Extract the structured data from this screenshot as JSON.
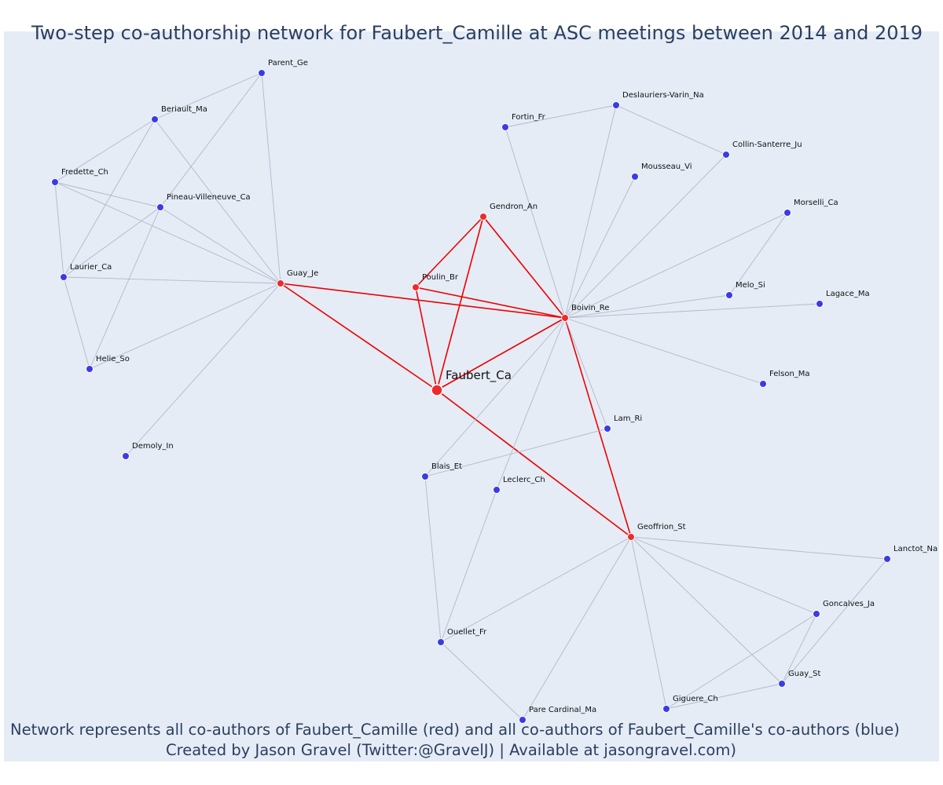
{
  "title": "Two-step co-authorship network for Faubert_Camille at ASC meetings between 2014 and 2019",
  "note_line1": "Network represents all co-authors of Faubert_Camille (red) and all co-authors of Faubert_Camille's co-authors (blue)",
  "note_line2": "Created by Jason Gravel (Twitter:@GravelJ) | Available at jasongravel.com)",
  "colors": {
    "background": "#e5ecf6",
    "red_node": "#ee2a2a",
    "blue_node": "#3b3be6",
    "red_edge": "#ee0000",
    "gray_edge": "#b3b8c8"
  },
  "nodes": [
    {
      "id": "Faubert_Ca",
      "group": "focal"
    },
    {
      "id": "Guay_Je",
      "group": "red"
    },
    {
      "id": "Poulin_Br",
      "group": "red"
    },
    {
      "id": "Gendron_An",
      "group": "red"
    },
    {
      "id": "Boivin_Re",
      "group": "red"
    },
    {
      "id": "Geoffrion_St",
      "group": "red"
    },
    {
      "id": "Parent_Ge",
      "group": "blue"
    },
    {
      "id": "Beriault_Ma",
      "group": "blue"
    },
    {
      "id": "Fredette_Ch",
      "group": "blue"
    },
    {
      "id": "Pineau-Villeneuve_Ca",
      "group": "blue"
    },
    {
      "id": "Laurier_Ca",
      "group": "blue"
    },
    {
      "id": "Helie_So",
      "group": "blue"
    },
    {
      "id": "Demoly_In",
      "group": "blue"
    },
    {
      "id": "Fortin_Fr",
      "group": "blue"
    },
    {
      "id": "Deslauriers-Varin_Na",
      "group": "blue"
    },
    {
      "id": "Collin-Santerre_Ju",
      "group": "blue"
    },
    {
      "id": "Mousseau_Vi",
      "group": "blue"
    },
    {
      "id": "Morselli_Ca",
      "group": "blue"
    },
    {
      "id": "Melo_Si",
      "group": "blue"
    },
    {
      "id": "Lagace_Ma",
      "group": "blue"
    },
    {
      "id": "Felson_Ma",
      "group": "blue"
    },
    {
      "id": "Lam_Ri",
      "group": "blue"
    },
    {
      "id": "Blais_Et",
      "group": "blue"
    },
    {
      "id": "Leclerc_Ch",
      "group": "blue"
    },
    {
      "id": "Lanctot_Na",
      "group": "blue"
    },
    {
      "id": "Goncalves_Ja",
      "group": "blue"
    },
    {
      "id": "Ouellet_Fr",
      "group": "blue"
    },
    {
      "id": "Guay_St",
      "group": "blue"
    },
    {
      "id": "Giguere_Ch",
      "group": "blue"
    },
    {
      "id": "Pare Cardinal_Ma",
      "group": "blue"
    }
  ],
  "edges": [
    [
      "Faubert_Ca",
      "Guay_Je",
      "red"
    ],
    [
      "Faubert_Ca",
      "Poulin_Br",
      "red"
    ],
    [
      "Faubert_Ca",
      "Gendron_An",
      "red"
    ],
    [
      "Faubert_Ca",
      "Boivin_Re",
      "red"
    ],
    [
      "Faubert_Ca",
      "Geoffrion_St",
      "red"
    ],
    [
      "Guay_Je",
      "Boivin_Re",
      "red"
    ],
    [
      "Poulin_Br",
      "Gendron_An",
      "red"
    ],
    [
      "Poulin_Br",
      "Boivin_Re",
      "red"
    ],
    [
      "Gendron_An",
      "Boivin_Re",
      "red"
    ],
    [
      "Boivin_Re",
      "Geoffrion_St",
      "red"
    ],
    [
      "Guay_Je",
      "Parent_Ge",
      "gray"
    ],
    [
      "Guay_Je",
      "Beriault_Ma",
      "gray"
    ],
    [
      "Guay_Je",
      "Fredette_Ch",
      "gray"
    ],
    [
      "Guay_Je",
      "Pineau-Villeneuve_Ca",
      "gray"
    ],
    [
      "Guay_Je",
      "Laurier_Ca",
      "gray"
    ],
    [
      "Guay_Je",
      "Helie_So",
      "gray"
    ],
    [
      "Guay_Je",
      "Demoly_In",
      "gray"
    ],
    [
      "Parent_Ge",
      "Beriault_Ma",
      "gray"
    ],
    [
      "Parent_Ge",
      "Pineau-Villeneuve_Ca",
      "gray"
    ],
    [
      "Beriault_Ma",
      "Fredette_Ch",
      "gray"
    ],
    [
      "Beriault_Ma",
      "Laurier_Ca",
      "gray"
    ],
    [
      "Fredette_Ch",
      "Pineau-Villeneuve_Ca",
      "gray"
    ],
    [
      "Fredette_Ch",
      "Laurier_Ca",
      "gray"
    ],
    [
      "Pineau-Villeneuve_Ca",
      "Laurier_Ca",
      "gray"
    ],
    [
      "Pineau-Villeneuve_Ca",
      "Helie_So",
      "gray"
    ],
    [
      "Laurier_Ca",
      "Helie_So",
      "gray"
    ],
    [
      "Boivin_Re",
      "Fortin_Fr",
      "gray"
    ],
    [
      "Boivin_Re",
      "Deslauriers-Varin_Na",
      "gray"
    ],
    [
      "Boivin_Re",
      "Collin-Santerre_Ju",
      "gray"
    ],
    [
      "Boivin_Re",
      "Mousseau_Vi",
      "gray"
    ],
    [
      "Boivin_Re",
      "Morselli_Ca",
      "gray"
    ],
    [
      "Boivin_Re",
      "Melo_Si",
      "gray"
    ],
    [
      "Boivin_Re",
      "Lagace_Ma",
      "gray"
    ],
    [
      "Boivin_Re",
      "Felson_Ma",
      "gray"
    ],
    [
      "Boivin_Re",
      "Lam_Ri",
      "gray"
    ],
    [
      "Boivin_Re",
      "Blais_Et",
      "gray"
    ],
    [
      "Boivin_Re",
      "Leclerc_Ch",
      "gray"
    ],
    [
      "Fortin_Fr",
      "Deslauriers-Varin_Na",
      "gray"
    ],
    [
      "Deslauriers-Varin_Na",
      "Collin-Santerre_Ju",
      "gray"
    ],
    [
      "Morselli_Ca",
      "Melo_Si",
      "gray"
    ],
    [
      "Lam_Ri",
      "Blais_Et",
      "gray"
    ],
    [
      "Blais_Et",
      "Ouellet_Fr",
      "gray"
    ],
    [
      "Leclerc_Ch",
      "Ouellet_Fr",
      "gray"
    ],
    [
      "Geoffrion_St",
      "Lanctot_Na",
      "gray"
    ],
    [
      "Geoffrion_St",
      "Goncalves_Ja",
      "gray"
    ],
    [
      "Geoffrion_St",
      "Guay_St",
      "gray"
    ],
    [
      "Geoffrion_St",
      "Giguere_Ch",
      "gray"
    ],
    [
      "Geoffrion_St",
      "Pare Cardinal_Ma",
      "gray"
    ],
    [
      "Geoffrion_St",
      "Ouellet_Fr",
      "gray"
    ],
    [
      "Ouellet_Fr",
      "Pare Cardinal_Ma",
      "gray"
    ],
    [
      "Lanctot_Na",
      "Guay_St",
      "gray"
    ],
    [
      "Goncalves_Ja",
      "Guay_St",
      "gray"
    ],
    [
      "Goncalves_Ja",
      "Giguere_Ch",
      "gray"
    ],
    [
      "Guay_St",
      "Giguere_Ch",
      "gray"
    ]
  ]
}
